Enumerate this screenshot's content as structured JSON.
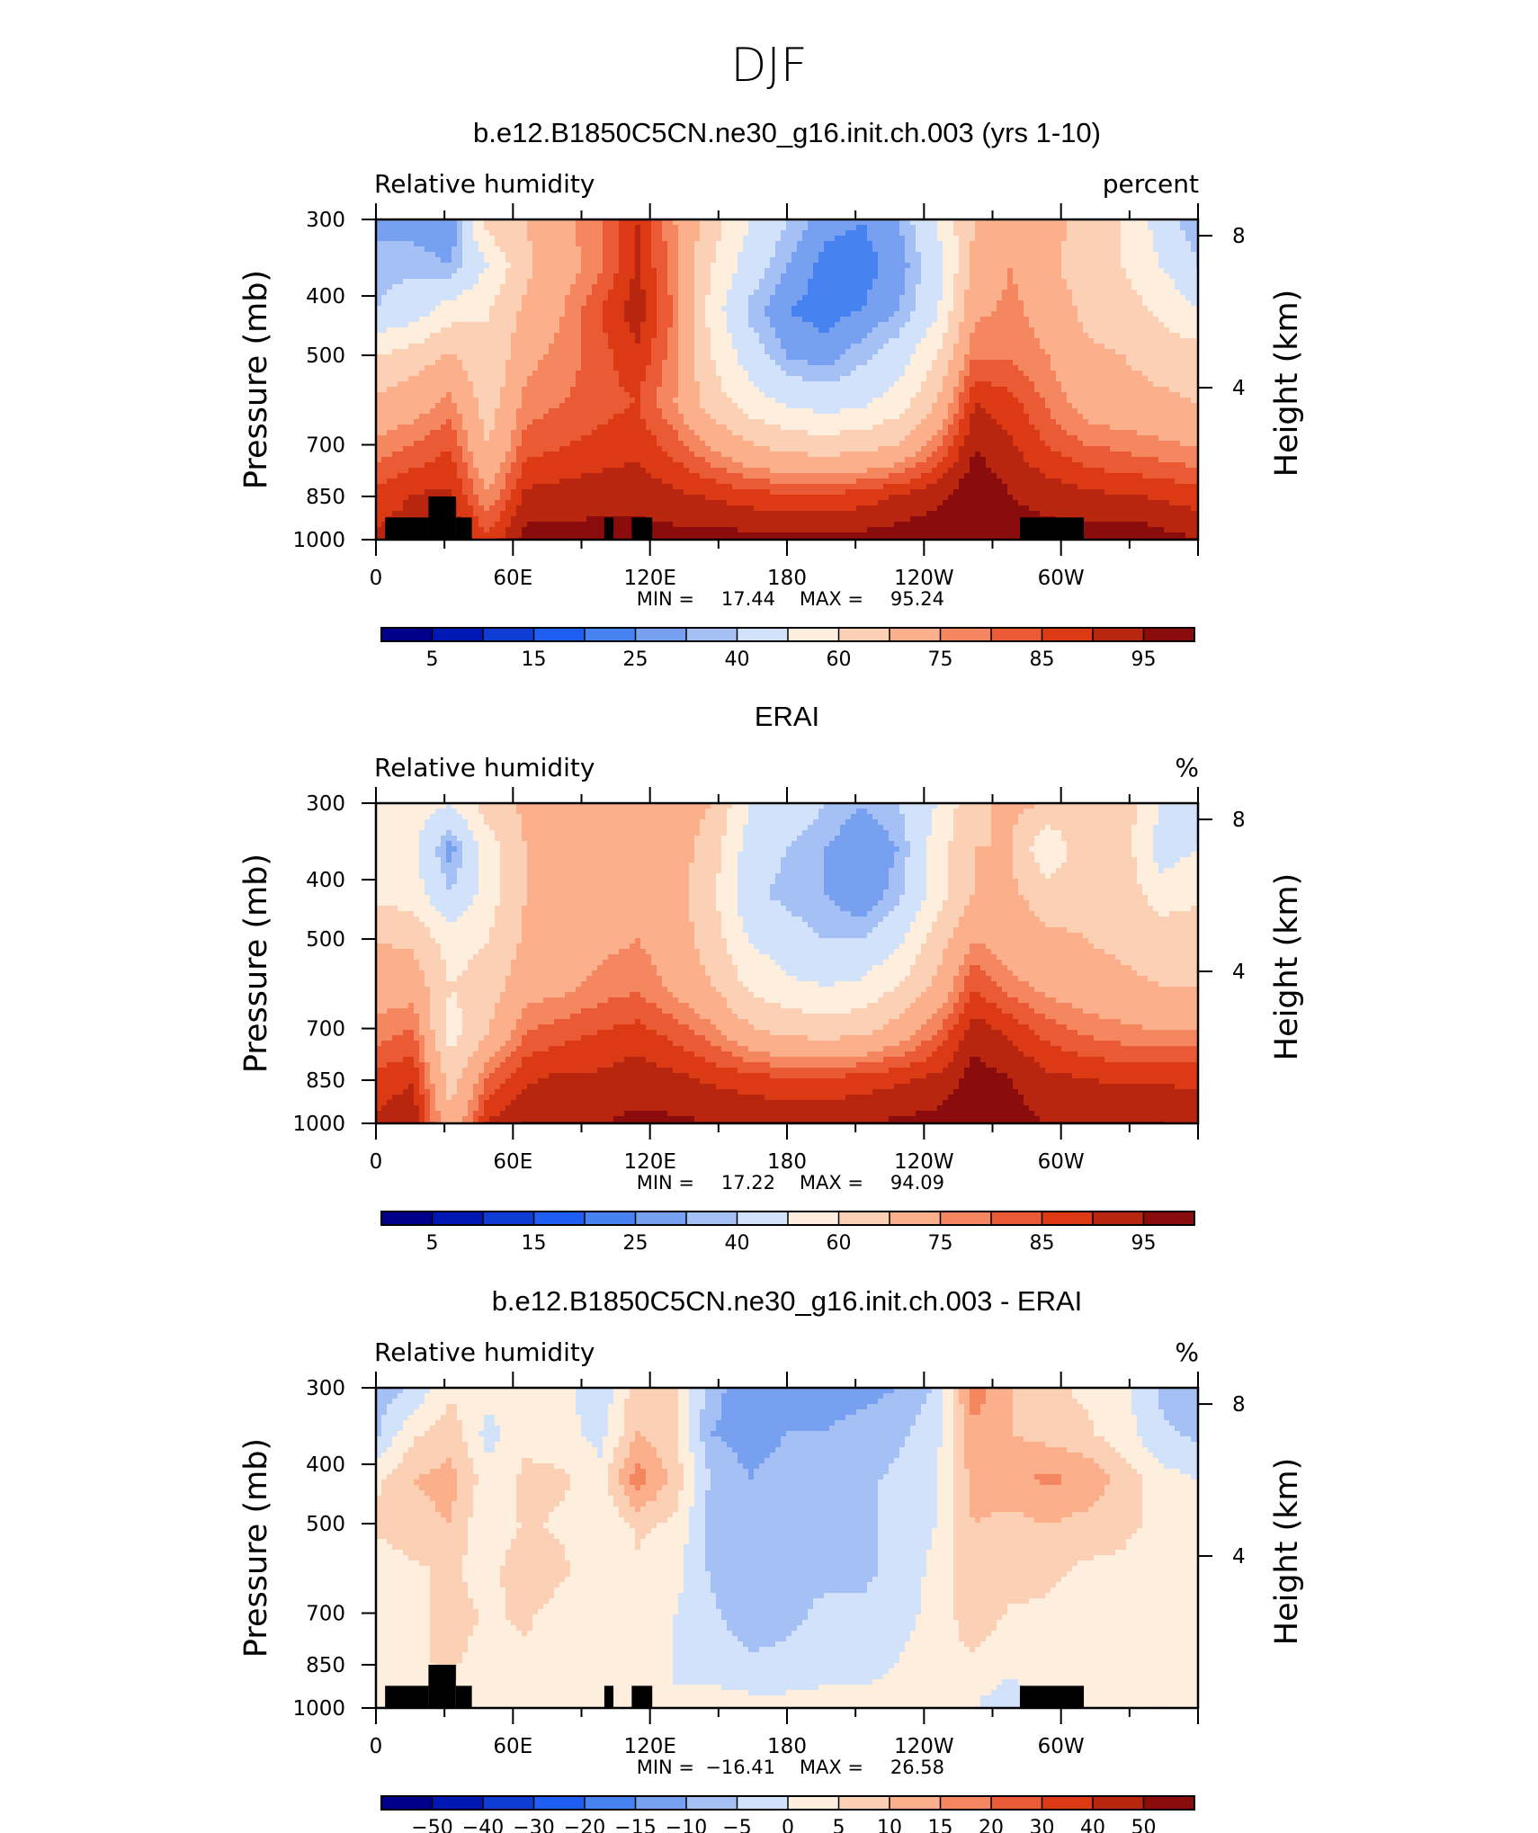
{
  "figure": {
    "title": "DJF"
  },
  "chart_data": [
    {
      "type": "heatmap",
      "title": "b.e12.B1850C5CN.ne30_g16.init.ch.003 (yrs 1-10)",
      "variable": "Relative humidity",
      "units": "percent",
      "ylabel": "Pressure (mb)",
      "ylabel_right": "Height (km)",
      "x_ticks": [
        "0",
        "60E",
        "120E",
        "180",
        "120W",
        "60W"
      ],
      "x_tick_values": [
        0,
        60,
        120,
        180,
        240,
        300
      ],
      "xlim": [
        0,
        360
      ],
      "y_ticks": [
        "300",
        "400",
        "500",
        "700",
        "850",
        "1000"
      ],
      "y_tick_values": [
        300,
        400,
        500,
        700,
        850,
        1000
      ],
      "ylim": [
        1000,
        300
      ],
      "y_scale": "log",
      "right_ticks": [
        "8",
        "4"
      ],
      "right_tick_values": [
        8,
        4
      ],
      "stats": {
        "min_label": "MIN =",
        "min": "17.44",
        "max_label": "MAX =",
        "max": "95.24"
      },
      "colorbar": {
        "labels": [
          "5",
          "15",
          "25",
          "40",
          "60",
          "75",
          "85",
          "95"
        ],
        "colors": [
          "#00008b",
          "#0019b4",
          "#0f3cd2",
          "#1e5ef0",
          "#4682f0",
          "#78a0f0",
          "#a5c0f5",
          "#d2e2fa",
          "#fdeedd",
          "#fcd0b4",
          "#fbaf8a",
          "#f48660",
          "#ea5a34",
          "#dc3a14",
          "#b9260f",
          "#8a0c0c"
        ]
      },
      "field": [
        [
          22,
          22,
          20,
          55,
          60,
          68,
          75,
          85,
          70,
          55,
          40,
          30,
          22,
          20,
          25,
          40,
          60,
          70,
          65,
          55,
          50,
          35,
          25
        ],
        [
          28,
          28,
          25,
          40,
          58,
          66,
          74,
          86,
          72,
          50,
          35,
          25,
          18,
          18,
          22,
          35,
          62,
          70,
          62,
          55,
          50,
          40,
          30
        ],
        [
          30,
          35,
          45,
          50,
          62,
          70,
          80,
          88,
          74,
          45,
          28,
          20,
          18,
          20,
          25,
          38,
          68,
          72,
          66,
          58,
          55,
          48,
          40
        ],
        [
          50,
          55,
          62,
          50,
          68,
          72,
          78,
          84,
          72,
          50,
          35,
          25,
          22,
          28,
          35,
          50,
          75,
          74,
          70,
          62,
          60,
          56,
          55
        ],
        [
          62,
          66,
          72,
          55,
          72,
          75,
          78,
          80,
          70,
          55,
          45,
          38,
          35,
          38,
          45,
          60,
          85,
          82,
          74,
          66,
          64,
          62,
          60
        ],
        [
          72,
          76,
          80,
          60,
          78,
          80,
          82,
          84,
          78,
          70,
          62,
          58,
          56,
          58,
          62,
          75,
          90,
          86,
          80,
          76,
          74,
          72,
          70
        ],
        [
          82,
          85,
          86,
          70,
          86,
          87,
          88,
          88,
          86,
          84,
          82,
          80,
          80,
          82,
          85,
          88,
          94,
          90,
          88,
          86,
          85,
          84,
          82
        ],
        [
          86,
          88,
          90,
          82,
          92,
          92,
          92,
          92,
          92,
          92,
          92,
          92,
          92,
          92,
          93,
          94,
          95,
          92,
          92,
          92,
          94,
          92,
          90
        ]
      ],
      "topography": [
        {
          "lon0": 4,
          "lon1": 23,
          "p_top": 920
        },
        {
          "lon0": 23,
          "lon1": 35,
          "p_top": 850
        },
        {
          "lon0": 35,
          "lon1": 42,
          "p_top": 920
        },
        {
          "lon0": 100,
          "lon1": 104,
          "p_top": 920
        },
        {
          "lon0": 112,
          "lon1": 121,
          "p_top": 920
        },
        {
          "lon0": 282,
          "lon1": 310,
          "p_top": 920
        }
      ]
    },
    {
      "type": "heatmap",
      "title": "ERAI",
      "variable": "Relative humidity",
      "units": "%",
      "ylabel": "Pressure (mb)",
      "ylabel_right": "Height (km)",
      "x_ticks": [
        "0",
        "60E",
        "120E",
        "180",
        "120W",
        "60W"
      ],
      "x_tick_values": [
        0,
        60,
        120,
        180,
        240,
        300
      ],
      "xlim": [
        0,
        360
      ],
      "y_ticks": [
        "300",
        "400",
        "500",
        "700",
        "850",
        "1000"
      ],
      "y_tick_values": [
        300,
        400,
        500,
        700,
        850,
        1000
      ],
      "ylim": [
        1000,
        300
      ],
      "y_scale": "log",
      "right_ticks": [
        "8",
        "4"
      ],
      "right_tick_values": [
        8,
        4
      ],
      "stats": {
        "min_label": "MIN =",
        "min": "17.22",
        "max_label": "MAX =",
        "max": "94.09"
      },
      "colorbar": {
        "labels": [
          "5",
          "15",
          "25",
          "40",
          "60",
          "75",
          "85",
          "95"
        ],
        "colors": [
          "#00008b",
          "#0019b4",
          "#0f3cd2",
          "#1e5ef0",
          "#4682f0",
          "#78a0f0",
          "#a5c0f5",
          "#d2e2fa",
          "#fdeedd",
          "#fcd0b4",
          "#fbaf8a",
          "#f48660",
          "#ea5a34",
          "#dc3a14",
          "#b9260f",
          "#8a0c0c"
        ]
      },
      "field": [
        [
          45,
          45,
          40,
          55,
          62,
          66,
          70,
          68,
          66,
          60,
          40,
          38,
          30,
          25,
          30,
          40,
          58,
          62,
          60,
          58,
          55,
          40,
          38
        ],
        [
          45,
          42,
          22,
          45,
          60,
          64,
          66,
          66,
          65,
          55,
          35,
          30,
          25,
          20,
          25,
          45,
          60,
          60,
          40,
          58,
          55,
          35,
          40
        ],
        [
          48,
          45,
          30,
          45,
          60,
          64,
          66,
          66,
          64,
          52,
          32,
          28,
          25,
          20,
          28,
          45,
          60,
          62,
          55,
          58,
          56,
          45,
          48
        ],
        [
          60,
          58,
          45,
          50,
          62,
          65,
          68,
          70,
          66,
          55,
          40,
          34,
          30,
          30,
          38,
          55,
          70,
          66,
          62,
          60,
          58,
          56,
          56
        ],
        [
          66,
          66,
          50,
          55,
          66,
          68,
          72,
          74,
          68,
          60,
          48,
          42,
          40,
          42,
          50,
          62,
          80,
          72,
          68,
          64,
          62,
          60,
          60
        ],
        [
          72,
          76,
          45,
          60,
          75,
          78,
          80,
          82,
          78,
          72,
          62,
          58,
          56,
          58,
          65,
          75,
          88,
          84,
          78,
          74,
          72,
          70,
          70
        ],
        [
          82,
          84,
          55,
          75,
          84,
          86,
          86,
          88,
          86,
          84,
          82,
          80,
          80,
          82,
          84,
          86,
          92,
          90,
          86,
          85,
          84,
          84,
          84
        ],
        [
          86,
          90,
          62,
          86,
          90,
          90,
          90,
          91,
          91,
          90,
          90,
          90,
          90,
          90,
          91,
          92,
          93,
          92,
          90,
          90,
          90,
          90,
          88
        ]
      ]
    },
    {
      "type": "heatmap",
      "title": "b.e12.B1850C5CN.ne30_g16.init.ch.003 - ERAI",
      "variable": "Relative humidity",
      "units": "%",
      "ylabel": "Pressure (mb)",
      "ylabel_right": "Height (km)",
      "x_ticks": [
        "0",
        "60E",
        "120E",
        "180",
        "120W",
        "60W"
      ],
      "x_tick_values": [
        0,
        60,
        120,
        180,
        240,
        300
      ],
      "xlim": [
        0,
        360
      ],
      "y_ticks": [
        "300",
        "400",
        "500",
        "700",
        "850",
        "1000"
      ],
      "y_tick_values": [
        300,
        400,
        500,
        700,
        850,
        1000
      ],
      "ylim": [
        1000,
        300
      ],
      "y_scale": "log",
      "right_ticks": [
        "8",
        "4"
      ],
      "right_tick_values": [
        8,
        4
      ],
      "stats": {
        "min_label": "MIN =",
        "min": "−16.41",
        "max_label": "MAX =",
        "max": "26.58"
      },
      "colorbar": {
        "labels": [
          "−50",
          "−40",
          "−30",
          "−20",
          "−15",
          "−10",
          "−5",
          "0",
          "5",
          "10",
          "15",
          "20",
          "30",
          "40",
          "50"
        ],
        "colors": [
          "#00008b",
          "#0019b4",
          "#0f3cd2",
          "#1e5ef0",
          "#4682f0",
          "#78a0f0",
          "#a5c0f5",
          "#d2e2fa",
          "#fdeedd",
          "#fcd0b4",
          "#fbaf8a",
          "#f48660",
          "#ea5a34",
          "#dc3a14",
          "#b9260f",
          "#8a0c0c"
        ]
      },
      "field": [
        [
          -8,
          -4,
          4,
          2,
          4,
          2,
          -4,
          8,
          6,
          -8,
          -14,
          -12,
          -12,
          -12,
          -10,
          -4,
          18,
          10,
          6,
          4,
          2,
          -6,
          -8
        ],
        [
          -6,
          4,
          8,
          -2,
          4,
          2,
          -2,
          10,
          6,
          -10,
          -12,
          -10,
          -10,
          -8,
          -6,
          -2,
          14,
          10,
          8,
          6,
          2,
          -4,
          -6
        ],
        [
          4,
          10,
          12,
          2,
          6,
          6,
          2,
          18,
          8,
          -6,
          -10,
          -8,
          -6,
          -6,
          -4,
          0,
          12,
          14,
          16,
          14,
          8,
          2,
          0
        ],
        [
          6,
          8,
          10,
          0,
          6,
          4,
          0,
          6,
          4,
          -8,
          -10,
          -8,
          -6,
          -6,
          -4,
          0,
          10,
          8,
          10,
          8,
          6,
          4,
          2
        ],
        [
          2,
          4,
          6,
          2,
          10,
          6,
          2,
          4,
          2,
          -6,
          -8,
          -6,
          -6,
          -6,
          -4,
          2,
          8,
          8,
          6,
          4,
          4,
          2,
          2
        ],
        [
          0,
          2,
          8,
          4,
          6,
          2,
          0,
          2,
          0,
          -4,
          -8,
          -6,
          -4,
          -4,
          -2,
          2,
          8,
          4,
          4,
          2,
          2,
          2,
          2
        ],
        [
          2,
          4,
          6,
          2,
          4,
          2,
          0,
          0,
          0,
          -2,
          -4,
          -4,
          -2,
          -2,
          0,
          4,
          4,
          2,
          2,
          0,
          2,
          2,
          0
        ],
        [
          0,
          0,
          4,
          0,
          2,
          2,
          2,
          0,
          0,
          2,
          2,
          2,
          2,
          2,
          2,
          4,
          0,
          -4,
          2,
          2,
          2,
          0,
          2
        ]
      ],
      "topography": [
        {
          "lon0": 4,
          "lon1": 23,
          "p_top": 920
        },
        {
          "lon0": 23,
          "lon1": 35,
          "p_top": 850
        },
        {
          "lon0": 35,
          "lon1": 42,
          "p_top": 920
        },
        {
          "lon0": 100,
          "lon1": 104,
          "p_top": 920
        },
        {
          "lon0": 112,
          "lon1": 121,
          "p_top": 920
        },
        {
          "lon0": 282,
          "lon1": 310,
          "p_top": 920
        }
      ]
    }
  ]
}
